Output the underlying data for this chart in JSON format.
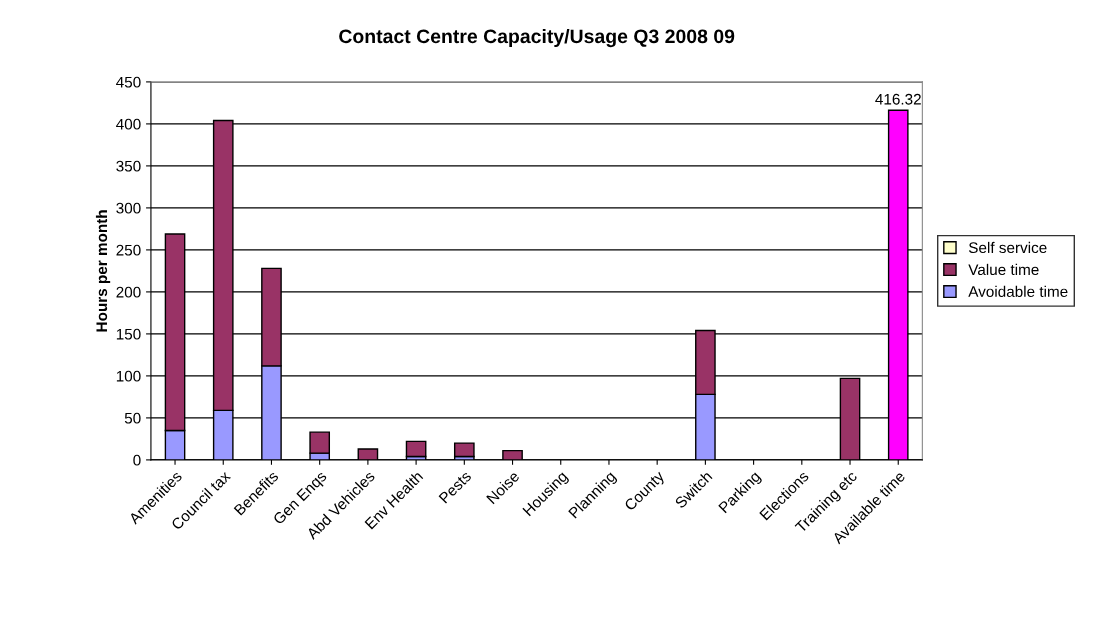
{
  "chart_data": {
    "type": "bar",
    "title": "Contact Centre Capacity/Usage Q3 2008 09",
    "ylabel": "Hours per month",
    "categories": [
      "Amenities",
      "Council tax",
      "Benefits",
      "Gen Enqs",
      "Abd Vehicles",
      "Env Health",
      "Pests",
      "Noise",
      "Housing",
      "Planning",
      "County",
      "Switch",
      "Parking",
      "Elections",
      "Training etc",
      "Available time"
    ],
    "stacked": true,
    "series": [
      {
        "name": "Avoidable time",
        "color": "#9999ff",
        "values": [
          35,
          59,
          112,
          8,
          null,
          4,
          4,
          null,
          null,
          null,
          null,
          78,
          null,
          null,
          null,
          null
        ]
      },
      {
        "name": "Value time",
        "color": "#993366",
        "colors": [
          "#993366",
          "#993366",
          "#993366",
          "#993366",
          "#993366",
          "#993366",
          "#993366",
          "#993366",
          "#993366",
          "#993366",
          "#993366",
          "#993366",
          "#993366",
          "#993366",
          "#993366",
          "#ff00ff"
        ],
        "values": [
          234,
          345,
          116,
          25,
          13,
          18,
          16,
          11,
          null,
          null,
          null,
          76,
          null,
          null,
          97,
          416.32
        ],
        "value_labels": [
          null,
          null,
          null,
          null,
          null,
          null,
          null,
          null,
          null,
          null,
          null,
          null,
          null,
          null,
          null,
          "416.32"
        ]
      },
      {
        "name": "Self service",
        "color": "#ffffcc",
        "values": [
          null,
          null,
          null,
          null,
          null,
          null,
          null,
          null,
          null,
          null,
          null,
          null,
          null,
          null,
          null,
          null
        ]
      }
    ],
    "ylim": [
      0,
      450
    ],
    "yticks": [
      0,
      50,
      100,
      150,
      200,
      250,
      300,
      350,
      400,
      450
    ],
    "grid": "y",
    "legend": "right"
  }
}
